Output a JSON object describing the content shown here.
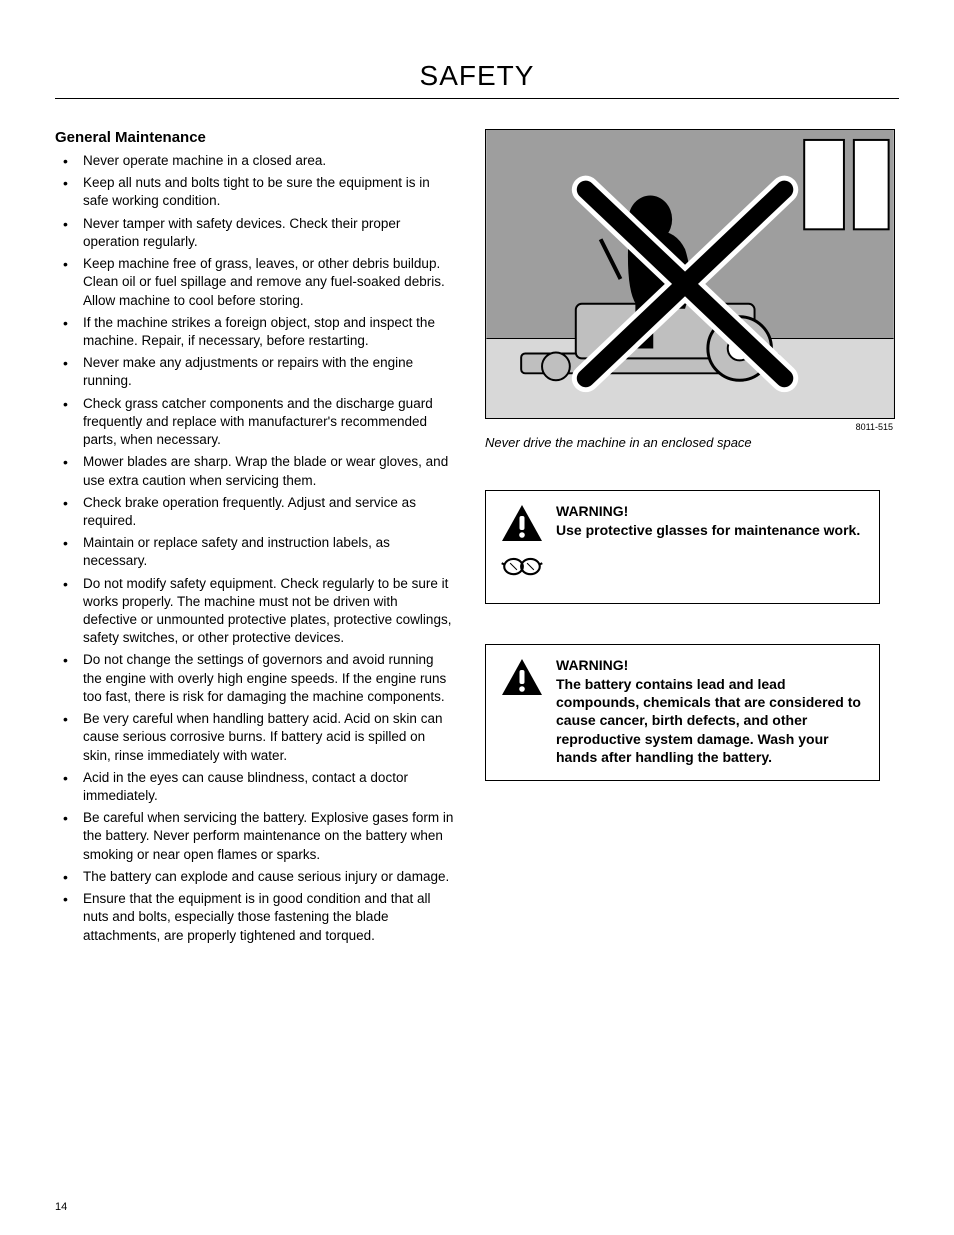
{
  "page": {
    "title": "SAFETY",
    "number": "14"
  },
  "section": {
    "heading": "General Maintenance",
    "bullets": [
      "Never operate machine in a closed area.",
      "Keep all nuts and bolts tight to be sure the equipment is in safe working condition.",
      "Never tamper with safety devices. Check their proper operation regularly.",
      "Keep machine free of grass, leaves, or other debris buildup. Clean oil or fuel spillage and remove any fuel-soaked debris. Allow machine to cool before storing.",
      "If the machine strikes a foreign object, stop and inspect the machine. Repair, if necessary, before restarting.",
      "Never make any adjustments or repairs with the engine running.",
      "Check grass catcher components and the discharge guard frequently and replace with manufacturer's recommended parts, when necessary.",
      "Mower blades are sharp. Wrap the blade or wear gloves, and use extra caution when servicing them.",
      "Check brake operation frequently. Adjust and service as required.",
      "Maintain or replace safety and instruction labels, as necessary.",
      "Do not modify safety equipment. Check regularly to be sure it works properly. The machine must not be driven with defective or unmounted protective plates, protective cowlings, safety switches, or other protective devices.",
      "Do not change the settings of governors and avoid running the engine with overly high engine speeds. If the engine runs too fast, there is risk for damaging the machine components.",
      "Be very careful when handling battery acid. Acid on skin can cause serious corrosive burns. If battery acid is spilled on skin, rinse immediately with water.",
      "Acid in the eyes can cause blindness, contact a doctor immediately.",
      "Be careful when servicing the battery. Explosive gases form in the battery. Never perform maintenance on the battery when smoking or near open flames or sparks.",
      "The battery can explode and cause serious injury or damage.",
      "Ensure that the equipment is in good condition and that all nuts and bolts, especially those fastening the blade attachments, are properly tightened and torqued."
    ]
  },
  "figure": {
    "ref": "8011-515",
    "caption": "Never drive the machine in an enclosed space",
    "colors": {
      "background": "#c8c8c8",
      "wall": "#9e9e9e",
      "floor": "#d8d8d8",
      "machine_fill": "#bfbfbf",
      "machine_stroke": "#000000",
      "silhouette": "#000000",
      "cross_fill": "#000000",
      "cross_outline": "#ffffff",
      "door_fill": "#ffffff",
      "door_stroke": "#000000"
    }
  },
  "warnings": [
    {
      "title": "WARNING!",
      "body": "Use protective glasses for maintenance work.",
      "show_glasses": true
    },
    {
      "title": "WARNING!",
      "body": "The battery contains lead and lead compounds, chemicals that are considered to cause cancer, birth defects, and other reproductive system damage. Wash your hands after handling the battery.",
      "show_glasses": false
    }
  ],
  "icons": {
    "triangle": {
      "fill": "#000000",
      "exclaim": "#ffffff"
    },
    "glasses": {
      "stroke": "#000000"
    }
  }
}
